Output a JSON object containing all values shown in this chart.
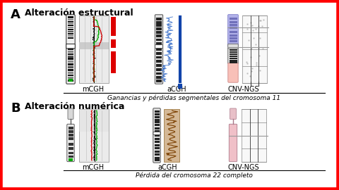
{
  "border_color": "#FF0000",
  "background_color": "#FFFFFF",
  "label_A": "A",
  "label_B": "B",
  "title_A": "Alteración estructural",
  "title_B": "Alteración numérica",
  "caption_A": "Ganancias y pérdidas segmentales del cromosoma 11",
  "caption_B": "Pérdida del cromosoma 22 completo",
  "mcgh_label": "mCGH",
  "acgh_label": "aCGH",
  "cnvngs_label": "CNV-NGS"
}
